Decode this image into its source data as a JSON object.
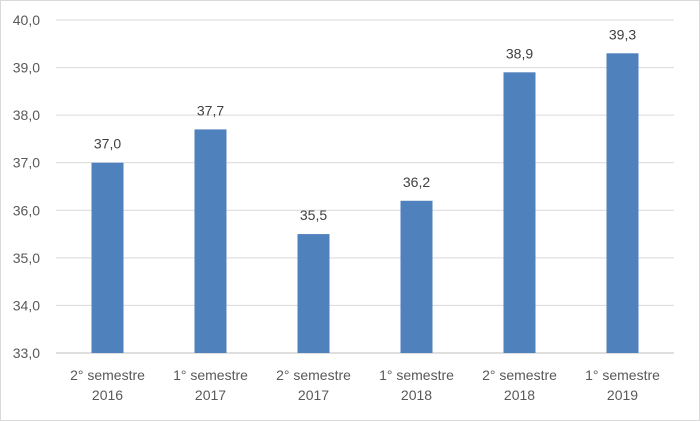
{
  "chart_data": {
    "type": "bar",
    "title": "",
    "xlabel": "",
    "ylabel": "",
    "categories": [
      [
        "2° semestre",
        "2016"
      ],
      [
        "1° semestre",
        "2017"
      ],
      [
        "2° semestre",
        "2017"
      ],
      [
        "1° semestre",
        "2018"
      ],
      [
        "2° semestre",
        "2018"
      ],
      [
        "1° semestre",
        "2019"
      ]
    ],
    "values": [
      37.0,
      37.7,
      35.5,
      36.2,
      38.9,
      39.3
    ],
    "data_labels": [
      "37,0",
      "37,7",
      "35,5",
      "36,2",
      "38,9",
      "39,3"
    ],
    "ylim": [
      33.0,
      40.0
    ],
    "yticks": [
      33.0,
      34.0,
      35.0,
      36.0,
      37.0,
      38.0,
      39.0,
      40.0
    ],
    "ytick_labels": [
      "33,0",
      "34,0",
      "35,0",
      "36,0",
      "37,0",
      "38,0",
      "39,0",
      "40,0"
    ],
    "grid": true,
    "legend": "none",
    "bar_color": "#4f81bd"
  }
}
